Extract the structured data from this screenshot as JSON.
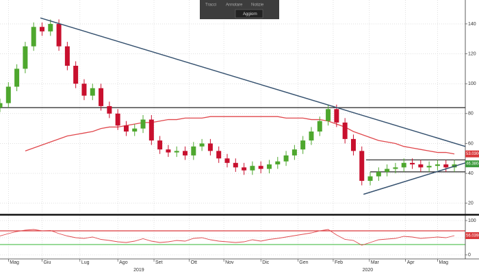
{
  "toolbar": {
    "buttons": [
      "Tracci",
      "Annotare",
      "Notizie"
    ],
    "action": "Aggiorn"
  },
  "chart_data": [
    {
      "type": "candlestick",
      "x": [
        0,
        1,
        2,
        3,
        4,
        5,
        6,
        7,
        8,
        9,
        10,
        11,
        12,
        13,
        14,
        15,
        16,
        17,
        18,
        19,
        20,
        21,
        22,
        23,
        24,
        25,
        26,
        27,
        28,
        29,
        30,
        31,
        32,
        33,
        34,
        35,
        36,
        37,
        38,
        39,
        40,
        41,
        42,
        43,
        44,
        45,
        46,
        47,
        48,
        49,
        50,
        51,
        52,
        53,
        54
      ],
      "open": [
        84,
        87,
        98,
        110,
        125,
        138,
        135,
        140,
        125,
        112,
        100,
        92,
        97,
        85,
        80,
        72,
        68,
        70,
        76,
        62,
        56,
        54,
        55,
        52,
        58,
        60,
        55,
        50,
        47,
        44,
        42,
        45,
        43,
        46,
        48,
        52,
        56,
        62,
        68,
        75,
        83,
        74,
        63,
        55,
        35,
        38,
        41,
        43,
        44,
        47,
        46,
        44,
        45,
        46,
        44
      ],
      "high": [
        90,
        101,
        113,
        128,
        141,
        141,
        143,
        143,
        128,
        115,
        103,
        100,
        100,
        88,
        83,
        75,
        73,
        79,
        79,
        65,
        59,
        58,
        58,
        61,
        63,
        63,
        58,
        53,
        50,
        47,
        48,
        48,
        49,
        51,
        55,
        59,
        65,
        71,
        78,
        86,
        86,
        77,
        66,
        58,
        41,
        44,
        46,
        47,
        50,
        50,
        49,
        48,
        49,
        49,
        49
      ],
      "low": [
        81,
        84,
        95,
        107,
        122,
        132,
        132,
        122,
        109,
        97,
        89,
        89,
        82,
        77,
        69,
        65,
        65,
        67,
        59,
        53,
        51,
        51,
        49,
        49,
        55,
        52,
        47,
        44,
        41,
        39,
        39,
        40,
        40,
        43,
        45,
        49,
        53,
        59,
        65,
        72,
        71,
        60,
        52,
        32,
        32,
        35,
        38,
        40,
        41,
        43,
        41,
        41,
        42,
        41,
        41
      ],
      "close": [
        87,
        98,
        110,
        125,
        138,
        135,
        140,
        125,
        112,
        100,
        92,
        97,
        85,
        80,
        72,
        68,
        70,
        76,
        62,
        56,
        54,
        55,
        52,
        58,
        60,
        55,
        50,
        47,
        44,
        42,
        45,
        43,
        46,
        48,
        52,
        56,
        62,
        68,
        75,
        83,
        74,
        63,
        55,
        35,
        38,
        41,
        43,
        44,
        47,
        46,
        44,
        45,
        46,
        44,
        46
      ],
      "up_color": "#4ea72e",
      "down_color": "#c8102e",
      "overlays": [
        {
          "color": "#e0474c",
          "values": [
            null,
            null,
            null,
            55,
            57,
            59,
            61,
            63,
            65,
            66,
            67,
            68,
            70,
            71,
            71,
            72,
            73,
            74,
            74,
            75,
            76,
            76,
            77,
            77,
            77,
            78,
            78,
            78,
            78,
            78,
            78,
            78,
            78,
            78,
            77,
            77,
            77,
            76,
            76,
            75,
            73,
            71,
            68,
            66,
            64,
            62,
            61,
            60,
            58,
            57,
            56,
            55,
            54,
            54,
            53
          ]
        }
      ],
      "trendlines": [
        {
          "x": [
            4.8,
            55.3
          ],
          "y": [
            144,
            58
          ],
          "color": "#34506e"
        },
        {
          "x": [
            43.2,
            55.3
          ],
          "y": [
            26,
            47
          ],
          "color": "#34506e"
        }
      ],
      "hlines": [
        {
          "value": 84,
          "from": 0,
          "color": "#222222"
        },
        {
          "value": 49,
          "from": 43.5,
          "color": "#222222"
        },
        {
          "value": 41,
          "from": 44,
          "color": "#222222"
        }
      ],
      "last_labels": [
        {
          "value": 53.03,
          "label": "53.0300",
          "color": "#d9383a"
        },
        {
          "value": 46.3804,
          "label": "46.3804",
          "color": "#3c9a3c"
        }
      ],
      "xlim": [
        0,
        55.3
      ],
      "xticks": [
        {
          "value": 1,
          "label": "Mag"
        },
        {
          "value": 5,
          "label": "Giu"
        },
        {
          "value": 9.5,
          "label": "Lug"
        },
        {
          "value": 14,
          "label": "Ago"
        },
        {
          "value": 18.3,
          "label": "Set"
        },
        {
          "value": 22.5,
          "label": "Ott"
        },
        {
          "value": 26.6,
          "label": "Nov"
        },
        {
          "value": 31,
          "label": "Dic"
        },
        {
          "value": 35.4,
          "label": "Gen"
        },
        {
          "value": 39.6,
          "label": "Feb"
        },
        {
          "value": 43.9,
          "label": "Mar"
        },
        {
          "value": 48.2,
          "label": "Apr"
        },
        {
          "value": 52,
          "label": "Mag"
        }
      ],
      "years": [
        {
          "value": 16.5,
          "label": "2019"
        },
        {
          "value": 43.7,
          "label": "2020"
        }
      ],
      "ylim": [
        13,
        156
      ],
      "yticks": [
        20,
        40,
        60,
        80,
        100,
        120,
        140
      ],
      "grid": true
    },
    {
      "type": "line",
      "color": "#e0474c",
      "values": [
        55,
        62,
        68,
        72,
        74,
        70,
        71,
        62,
        55,
        50,
        48,
        52,
        45,
        42,
        38,
        36,
        40,
        47,
        40,
        36,
        38,
        42,
        40,
        48,
        50,
        44,
        40,
        38,
        36,
        38,
        44,
        40,
        45,
        48,
        52,
        56,
        60,
        64,
        70,
        74,
        58,
        45,
        42,
        28,
        36,
        44,
        46,
        48,
        54,
        52,
        48,
        50,
        52,
        50,
        56
      ],
      "hlines": [
        {
          "value": 70,
          "color": "#d9383a"
        },
        {
          "value": 30,
          "color": "#5cc45c"
        }
      ],
      "last_labels": [
        {
          "value": 56.0398,
          "label": "56.0398",
          "color": "#d9383a"
        }
      ],
      "ylim": [
        -12,
        114
      ],
      "yticks": [
        0,
        50,
        100
      ],
      "grid": true
    }
  ]
}
